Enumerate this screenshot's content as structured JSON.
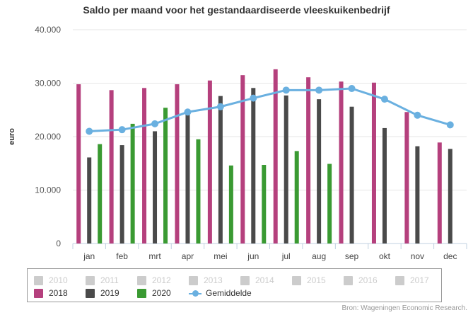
{
  "chart_data": {
    "type": "bar",
    "title": "Saldo per maand voor het gestandaardiseerde vleeskuikenbedrijf",
    "ylabel": "euro",
    "ylim": [
      0,
      40000
    ],
    "yticks": [
      "0",
      "10.000",
      "20.000",
      "30.000",
      "40.000"
    ],
    "ytick_values": [
      0,
      10000,
      20000,
      30000,
      40000
    ],
    "categories": [
      "jan",
      "feb",
      "mrt",
      "apr",
      "mei",
      "jun",
      "jul",
      "aug",
      "sep",
      "okt",
      "nov",
      "dec"
    ],
    "series": [
      {
        "name": "2018",
        "type": "bar",
        "color": "#b5407d",
        "values": [
          29800,
          28700,
          29100,
          29800,
          30500,
          31500,
          32600,
          31100,
          30300,
          30100,
          24600,
          18900
        ]
      },
      {
        "name": "2019",
        "type": "bar",
        "color": "#4a4a4a",
        "values": [
          16100,
          18400,
          21000,
          24100,
          27600,
          29100,
          27700,
          27000,
          25600,
          21600,
          18200,
          17700
        ]
      },
      {
        "name": "2020",
        "type": "bar",
        "color": "#3a9a32",
        "values": [
          18600,
          22400,
          25400,
          19500,
          14600,
          14700,
          17300,
          14900,
          null,
          null,
          null,
          null
        ]
      },
      {
        "name": "Gemiddelde",
        "type": "line",
        "color": "#6ab0e0",
        "values": [
          21000,
          21300,
          22400,
          24600,
          25600,
          27200,
          28700,
          28700,
          29000,
          27000,
          24000,
          22200
        ]
      }
    ],
    "hidden_series": [
      "2010",
      "2011",
      "2012",
      "2013",
      "2014",
      "2015",
      "2016",
      "2017"
    ],
    "grid": true,
    "legend_position": "bottom"
  },
  "source": "Bron: Wageningen Economic Research."
}
